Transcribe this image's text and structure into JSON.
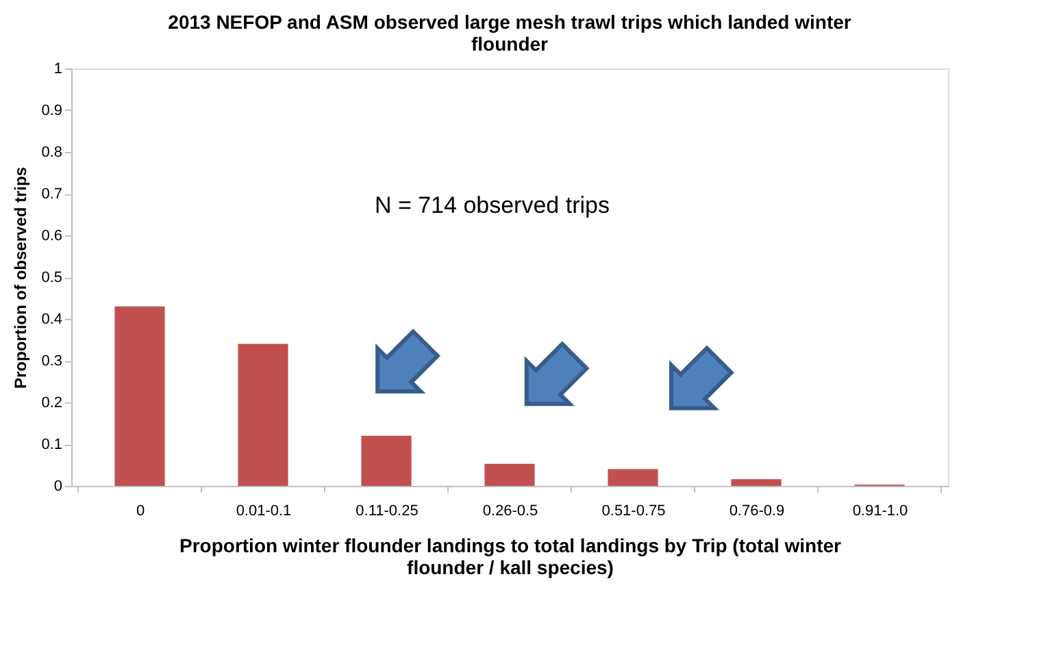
{
  "chart_data": {
    "type": "bar",
    "title": "2013 NEFOP and ASM observed large mesh trawl trips which landed winter flounder",
    "xlabel": "Proportion winter flounder landings to total landings by Trip (total winter flounder / kall species)",
    "ylabel": "Proportion of observed trips",
    "categories": [
      "0",
      "0.01-0.1",
      "0.11-0.25",
      "0.26-0.5",
      "0.51-0.75",
      "0.76-0.9",
      "0.91-1.0"
    ],
    "values": [
      0.43,
      0.34,
      0.12,
      0.053,
      0.04,
      0.016,
      0.003
    ],
    "color": "#c0504d",
    "ylim": [
      0,
      1
    ],
    "yticks": [
      0,
      0.1,
      0.2,
      0.3,
      0.4,
      0.5,
      0.6,
      0.7,
      0.8,
      0.9,
      1
    ],
    "grid": false,
    "annotations": [
      "N = 714 observed trips"
    ]
  }
}
